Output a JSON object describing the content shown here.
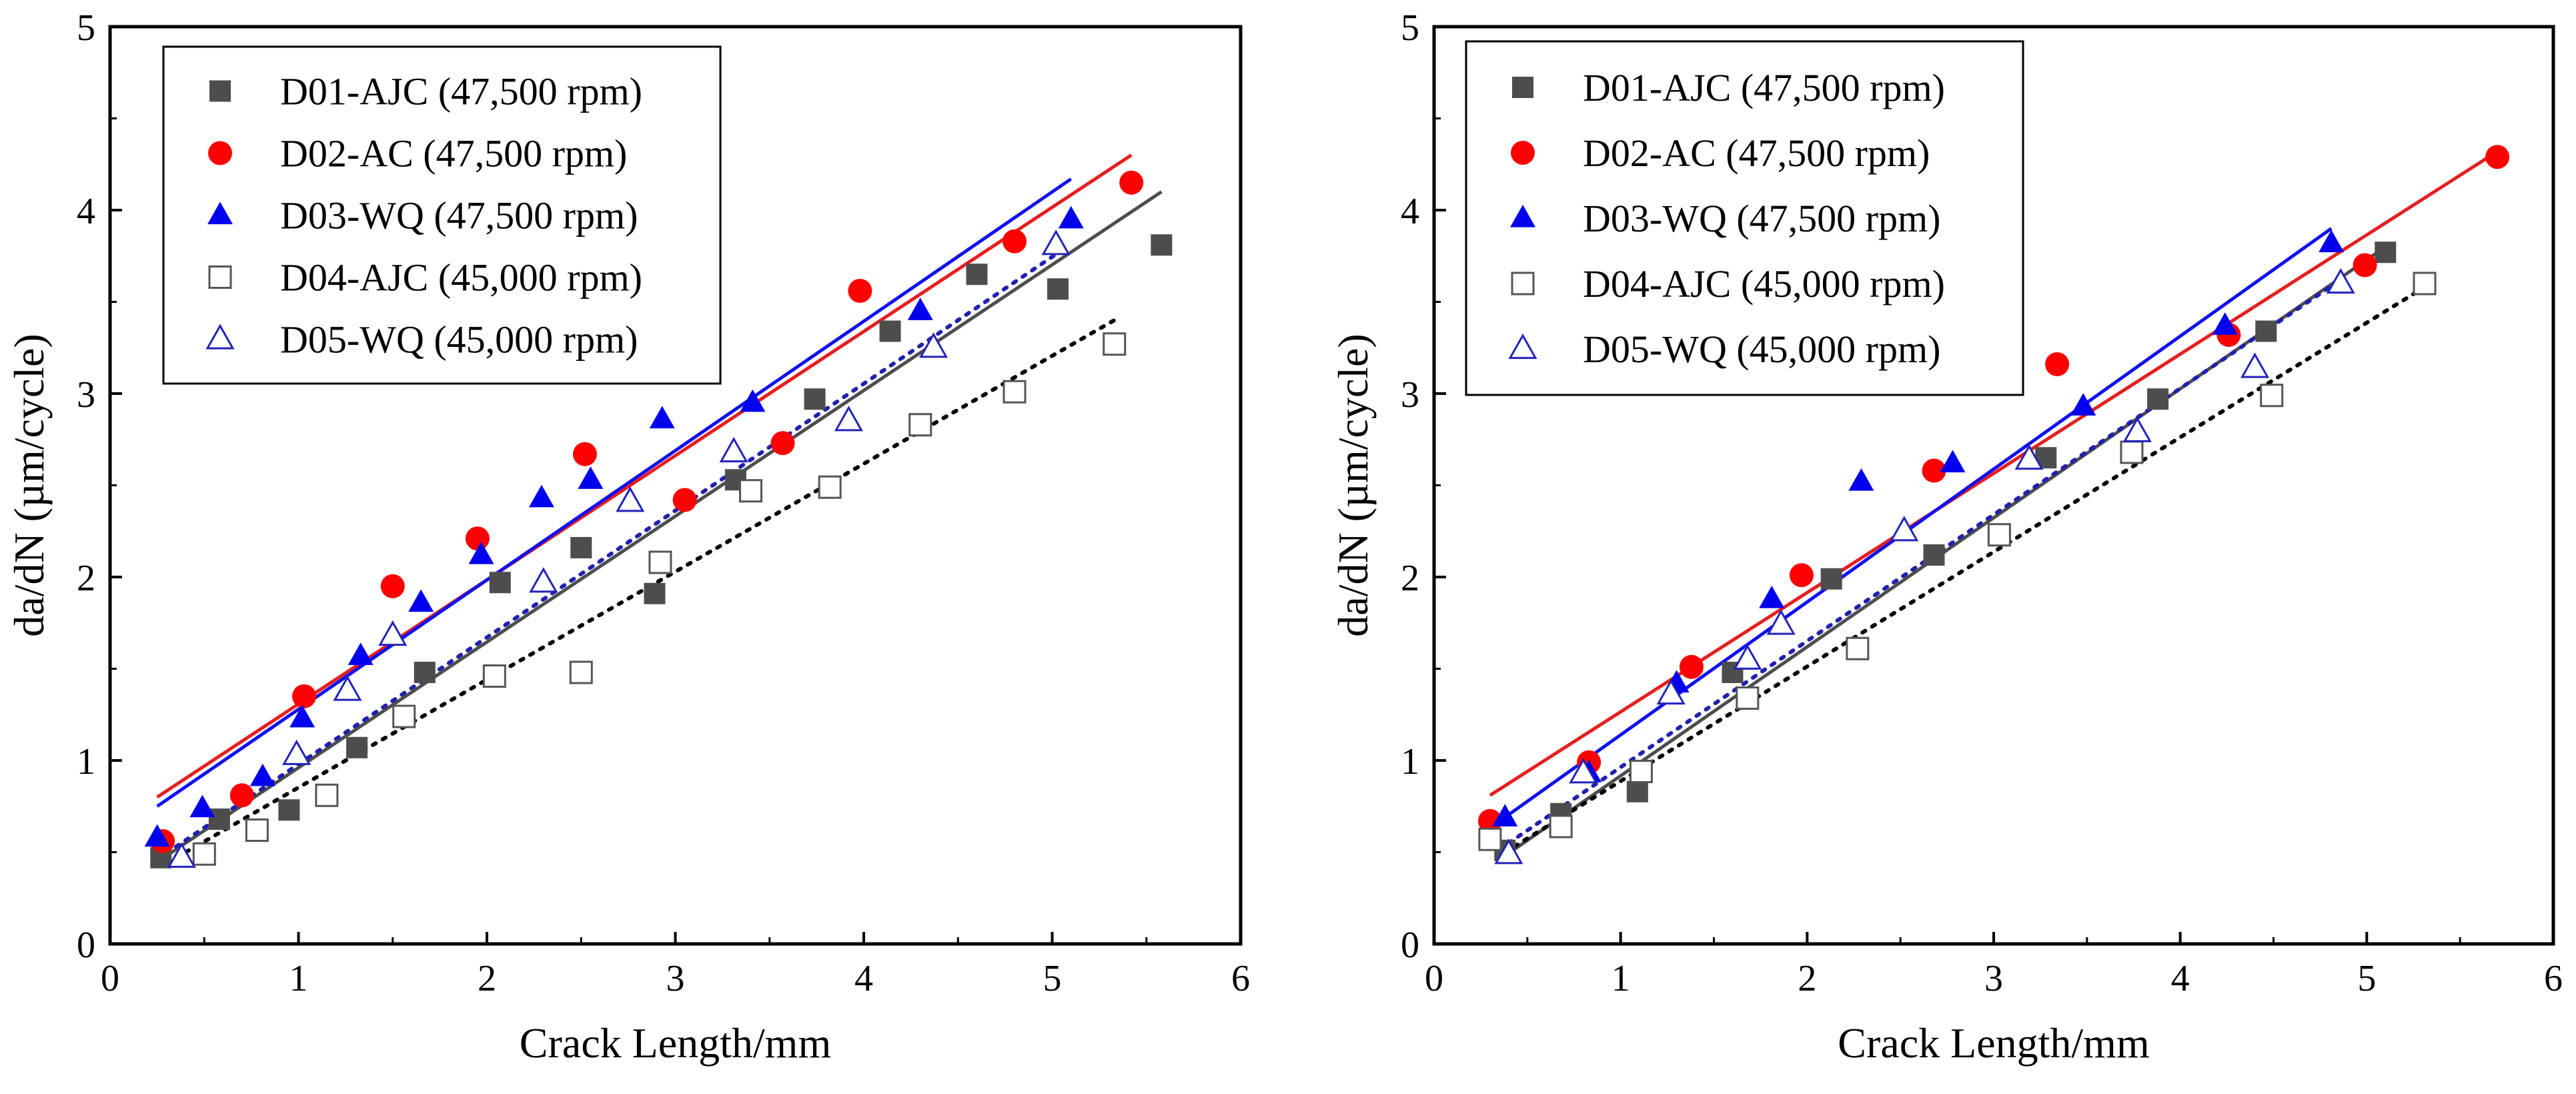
{
  "figure": {
    "colors": {
      "D01": "#4d4d4d",
      "D02": "#ff0000",
      "D03": "#0000ee",
      "D04": "#555555",
      "D05": "#2222bb",
      "fit_D01": "#4d4d4d",
      "fit_D02": "#e61e1e",
      "fit_D03": "#1010ee",
      "fit_D04": "#000000",
      "fit_D05": "#2020b0"
    }
  },
  "chart_data": [
    {
      "type": "scatter",
      "title": "",
      "xlabel": "Crack Length/mm",
      "ylabel": "da/dN (µm/cycle)",
      "xlim": [
        0,
        6
      ],
      "ylim": [
        0,
        5
      ],
      "xticks": [
        "0",
        "1",
        "2",
        "3",
        "4",
        "5",
        "6"
      ],
      "yticks": [
        "0",
        "1",
        "2",
        "3",
        "4",
        "5"
      ],
      "legend_position": "top-left",
      "series": [
        {
          "name": "D01-AJC (47,500 rpm)",
          "marker": "square-filled",
          "color_key": "D01",
          "x": [
            0.27,
            0.58,
            0.95,
            1.31,
            1.67,
            2.07,
            2.5,
            2.89,
            3.32,
            3.74,
            4.14,
            4.6,
            5.03,
            5.58
          ],
          "y": [
            0.47,
            0.68,
            0.73,
            1.07,
            1.48,
            1.97,
            2.16,
            1.91,
            2.53,
            2.97,
            3.34,
            3.65,
            3.57,
            3.81
          ],
          "fit": {
            "x": [
              0.27,
              5.58
            ],
            "y": [
              0.46,
              4.1
            ],
            "style": "solid"
          }
        },
        {
          "name": "D02-AC (47,500 rpm)",
          "marker": "circle-filled",
          "color_key": "D02",
          "x": [
            0.28,
            0.7,
            1.03,
            1.5,
            1.95,
            2.52,
            3.05,
            3.57,
            3.98,
            4.8,
            5.42
          ],
          "y": [
            0.56,
            0.81,
            1.35,
            1.95,
            2.21,
            2.67,
            2.42,
            2.73,
            3.56,
            3.83,
            4.15
          ],
          "fit": {
            "x": [
              0.25,
              5.42
            ],
            "y": [
              0.8,
              4.3
            ],
            "style": "solid"
          }
        },
        {
          "name": "D03-WQ (47,500 rpm)",
          "marker": "triangle-filled",
          "color_key": "D03",
          "x": [
            0.25,
            0.49,
            0.81,
            1.02,
            1.33,
            1.65,
            1.97,
            2.29,
            2.55,
            2.93,
            3.41,
            4.3,
            5.1
          ],
          "y": [
            0.58,
            0.74,
            0.91,
            1.23,
            1.57,
            1.86,
            2.12,
            2.43,
            2.53,
            2.86,
            2.95,
            3.45,
            3.95
          ],
          "fit": {
            "x": [
              0.25,
              5.1
            ],
            "y": [
              0.75,
              4.17
            ],
            "style": "solid"
          }
        },
        {
          "name": "D04-AJC (45,000 rpm)",
          "marker": "square-open",
          "color_key": "D04",
          "x": [
            0.5,
            0.78,
            1.15,
            1.56,
            2.04,
            2.5,
            2.92,
            3.4,
            3.82,
            4.3,
            4.8,
            5.33
          ],
          "y": [
            0.49,
            0.62,
            0.81,
            1.24,
            1.46,
            1.48,
            2.08,
            2.47,
            2.49,
            2.83,
            3.01,
            3.27
          ],
          "fit": {
            "x": [
              0.35,
              5.33
            ],
            "y": [
              0.47,
              3.4
            ],
            "style": "dotted"
          }
        },
        {
          "name": "D05-WQ (45,000 rpm)",
          "marker": "triangle-open",
          "color_key": "D05",
          "x": [
            0.38,
            0.99,
            1.26,
            1.5,
            2.3,
            2.76,
            3.31,
            3.92,
            4.37,
            5.02
          ],
          "y": [
            0.47,
            1.03,
            1.38,
            1.68,
            1.97,
            2.41,
            2.68,
            2.85,
            3.25,
            3.81
          ],
          "fit": {
            "x": [
              0.35,
              5.05
            ],
            "y": [
              0.53,
              3.78
            ],
            "style": "dotted"
          }
        }
      ]
    },
    {
      "type": "scatter",
      "title": "",
      "xlabel": "Crack Length/mm",
      "ylabel": "da/dN (µm/cycle)",
      "xlim": [
        0,
        6
      ],
      "ylim": [
        0,
        5
      ],
      "xticks": [
        "0",
        "1",
        "2",
        "3",
        "4",
        "5",
        "6"
      ],
      "yticks": [
        "0",
        "1",
        "2",
        "3",
        "4",
        "5"
      ],
      "legend_position": "top-left",
      "series": [
        {
          "name": "D01-AJC (47,500 rpm)",
          "marker": "square-filled",
          "color_key": "D01",
          "x": [
            0.38,
            0.68,
            1.09,
            1.6,
            2.13,
            2.68,
            3.28,
            3.88,
            4.46,
            5.1
          ],
          "y": [
            0.51,
            0.71,
            0.83,
            1.48,
            1.99,
            2.12,
            2.65,
            2.97,
            3.34,
            3.77
          ],
          "fit": {
            "x": [
              0.38,
              5.1
            ],
            "y": [
              0.48,
              3.8
            ],
            "style": "solid"
          }
        },
        {
          "name": "D02-AC (47,500 rpm)",
          "marker": "circle-filled",
          "color_key": "D02",
          "x": [
            0.3,
            0.83,
            1.38,
            1.97,
            2.68,
            3.34,
            4.26,
            4.99,
            5.7
          ],
          "y": [
            0.67,
            0.99,
            1.51,
            2.01,
            2.58,
            3.16,
            3.32,
            3.7,
            4.29
          ],
          "fit": {
            "x": [
              0.3,
              5.7
            ],
            "y": [
              0.81,
              4.32
            ],
            "style": "solid"
          }
        },
        {
          "name": "D03-WQ (47,500 rpm)",
          "marker": "triangle-filled",
          "color_key": "D03",
          "x": [
            0.38,
            0.83,
            1.3,
            1.81,
            2.29,
            2.78,
            3.48,
            4.24,
            4.81
          ],
          "y": [
            0.69,
            0.93,
            1.42,
            1.88,
            2.52,
            2.62,
            2.93,
            3.37,
            3.82
          ],
          "fit": {
            "x": [
              0.38,
              4.81
            ],
            "y": [
              0.69,
              3.9
            ],
            "style": "solid"
          }
        },
        {
          "name": "D04-AJC (45,000 rpm)",
          "marker": "square-open",
          "color_key": "D04",
          "x": [
            0.3,
            0.68,
            1.11,
            1.68,
            2.27,
            3.03,
            3.74,
            4.49,
            5.31
          ],
          "y": [
            0.57,
            0.64,
            0.94,
            1.34,
            1.61,
            2.23,
            2.68,
            2.99,
            3.6
          ],
          "fit": {
            "x": [
              0.38,
              5.31
            ],
            "y": [
              0.5,
              3.58
            ],
            "style": "dotted"
          }
        },
        {
          "name": "D05-WQ (45,000 rpm)",
          "marker": "triangle-open",
          "color_key": "D05",
          "x": [
            0.4,
            0.8,
            1.27,
            1.68,
            1.86,
            2.52,
            3.19,
            3.77,
            4.4,
            4.86
          ],
          "y": [
            0.49,
            0.93,
            1.36,
            1.55,
            1.74,
            2.25,
            2.64,
            2.79,
            3.14,
            3.6
          ],
          "fit": {
            "x": [
              0.4,
              4.86
            ],
            "y": [
              0.55,
              3.62
            ],
            "style": "dotted"
          }
        }
      ]
    }
  ]
}
